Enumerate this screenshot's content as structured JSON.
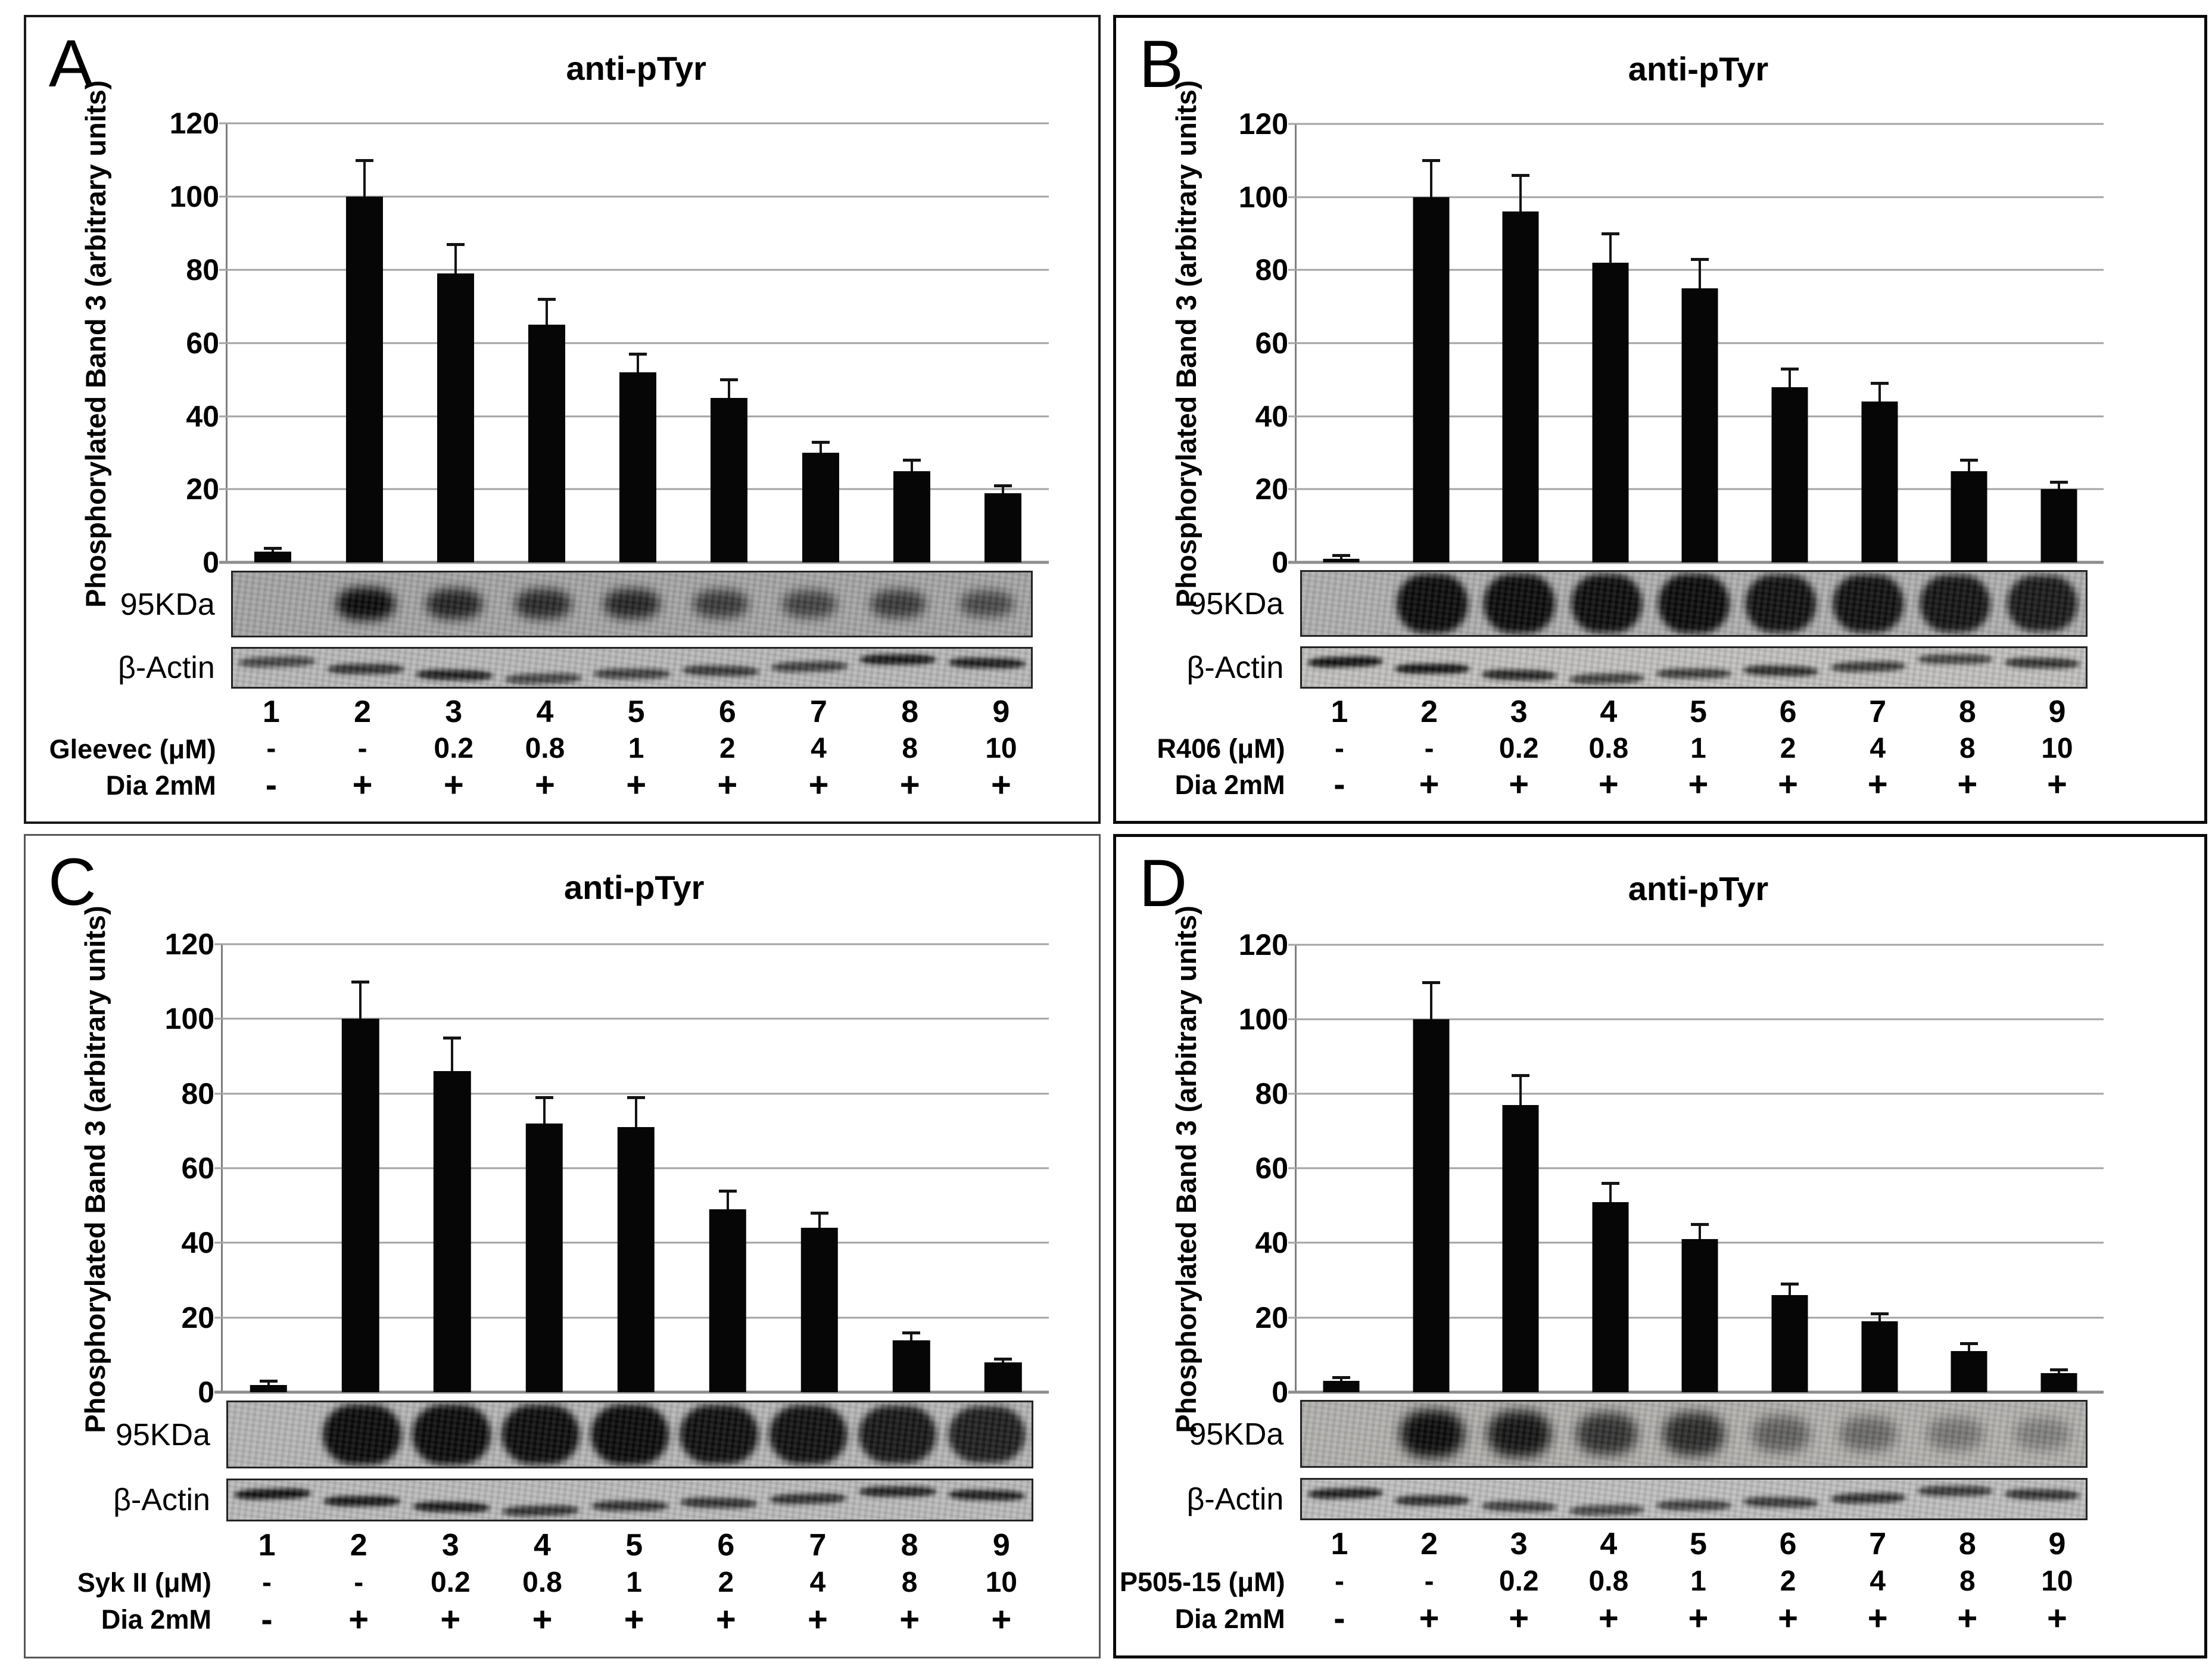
{
  "figure": {
    "description": "Four-panel western blot figure, each panel: anti-pTyr bar chart with error bars over 95KDa and β-Actin blot strips and lane/treatment annotation rows",
    "panel_letters": [
      "A",
      "B",
      "C",
      "D"
    ]
  },
  "chart_data": [
    {
      "panel": "A",
      "type": "bar",
      "title": "anti-pTyr",
      "ylabel": "Phosphorylated Band 3 (arbitrary units)",
      "ylim": [
        0,
        120
      ],
      "yticks": [
        0,
        20,
        40,
        60,
        80,
        100,
        120
      ],
      "grid": true,
      "bar_color": "#060606",
      "categories": [
        "1",
        "2",
        "3",
        "4",
        "5",
        "6",
        "7",
        "8",
        "9"
      ],
      "values": [
        3,
        100,
        79,
        65,
        52,
        45,
        30,
        25,
        19
      ],
      "errors": [
        1,
        10,
        8,
        7,
        5,
        5,
        3,
        3,
        2
      ],
      "treatment": {
        "label": "Gleevec (μM)",
        "values": [
          "-",
          "-",
          "0.2",
          "0.8",
          "1",
          "2",
          "4",
          "8",
          "10"
        ]
      },
      "dia": {
        "label": "Dia 2mM",
        "values": [
          "-",
          "+",
          "+",
          "+",
          "+",
          "+",
          "+",
          "+",
          "+"
        ]
      },
      "blots": [
        {
          "label": "95KDa",
          "band_intensities": [
            0.04,
            1,
            0.8,
            0.75,
            0.78,
            0.62,
            0.55,
            0.62,
            0.5
          ]
        },
        {
          "label": "β-Actin",
          "band_intensities": [
            0.55,
            0.7,
            0.85,
            0.55,
            0.6,
            0.65,
            0.6,
            0.9,
            0.85
          ]
        }
      ]
    },
    {
      "panel": "B",
      "type": "bar",
      "title": "anti-pTyr",
      "ylabel": "Phosphorylated Band 3 (arbitrary units)",
      "ylim": [
        0,
        120
      ],
      "yticks": [
        0,
        20,
        40,
        60,
        80,
        100,
        120
      ],
      "grid": true,
      "bar_color": "#060606",
      "categories": [
        "1",
        "2",
        "3",
        "4",
        "5",
        "6",
        "7",
        "8",
        "9"
      ],
      "values": [
        1,
        100,
        96,
        82,
        75,
        48,
        44,
        25,
        20
      ],
      "errors": [
        1,
        10,
        10,
        8,
        8,
        5,
        5,
        3,
        2
      ],
      "treatment": {
        "label": "R406 (μM)",
        "values": [
          "-",
          "-",
          "0.2",
          "0.8",
          "1",
          "2",
          "4",
          "8",
          "10"
        ]
      },
      "dia": {
        "label": "Dia 2mM",
        "values": [
          "-",
          "+",
          "+",
          "+",
          "+",
          "+",
          "+",
          "+",
          "+"
        ]
      },
      "blots": [
        {
          "label": "95KDa",
          "band_intensities": [
            0.05,
            1,
            1,
            0.98,
            1,
            0.95,
            0.95,
            0.92,
            0.88
          ]
        },
        {
          "label": "β-Actin",
          "band_intensities": [
            0.95,
            0.95,
            0.8,
            0.6,
            0.65,
            0.75,
            0.65,
            0.6,
            0.7
          ]
        }
      ]
    },
    {
      "panel": "C",
      "type": "bar",
      "title": "anti-pTyr",
      "ylabel": "Phosphorylated Band 3 (arbitrary units)",
      "ylim": [
        0,
        120
      ],
      "yticks": [
        0,
        20,
        40,
        60,
        80,
        100,
        120
      ],
      "grid": true,
      "bar_color": "#060606",
      "categories": [
        "1",
        "2",
        "3",
        "4",
        "5",
        "6",
        "7",
        "8",
        "9"
      ],
      "values": [
        2,
        100,
        86,
        72,
        71,
        49,
        44,
        14,
        8
      ],
      "errors": [
        1,
        10,
        9,
        7,
        8,
        5,
        4,
        2,
        1
      ],
      "treatment": {
        "label": "Syk II (μM)",
        "values": [
          "-",
          "-",
          "0.2",
          "0.8",
          "1",
          "2",
          "4",
          "8",
          "10"
        ]
      },
      "dia": {
        "label": "Dia 2mM",
        "values": [
          "-",
          "+",
          "+",
          "+",
          "+",
          "+",
          "+",
          "+",
          "+"
        ]
      },
      "blots": [
        {
          "label": "95KDa",
          "band_intensities": [
            0.03,
            1,
            1,
            0.98,
            1,
            0.96,
            0.95,
            0.9,
            0.85
          ]
        },
        {
          "label": "β-Actin",
          "band_intensities": [
            0.95,
            0.9,
            0.88,
            0.7,
            0.72,
            0.7,
            0.72,
            0.82,
            0.85
          ]
        }
      ]
    },
    {
      "panel": "D",
      "type": "bar",
      "title": "anti-pTyr",
      "ylabel": "Phosphorylated Band 3 (arbitrary units)",
      "ylim": [
        0,
        120
      ],
      "yticks": [
        0,
        20,
        40,
        60,
        80,
        100,
        120
      ],
      "grid": true,
      "bar_color": "#060606",
      "categories": [
        "1",
        "2",
        "3",
        "4",
        "5",
        "6",
        "7",
        "8",
        "9"
      ],
      "values": [
        3,
        100,
        77,
        51,
        41,
        26,
        19,
        11,
        5
      ],
      "errors": [
        1,
        10,
        8,
        5,
        4,
        3,
        2,
        2,
        1
      ],
      "treatment": {
        "label": "P505-15 (μM)",
        "values": [
          "-",
          "-",
          "0.2",
          "0.8",
          "1",
          "2",
          "4",
          "8",
          "10"
        ]
      },
      "dia": {
        "label": "Dia 2mM",
        "values": [
          "-",
          "+",
          "+",
          "+",
          "+",
          "+",
          "+",
          "+",
          "+"
        ]
      },
      "blots": [
        {
          "label": "95KDa",
          "band_intensities": [
            0.04,
            1,
            0.92,
            0.7,
            0.75,
            0.35,
            0.28,
            0.18,
            0.12
          ]
        },
        {
          "label": "β-Actin",
          "band_intensities": [
            0.85,
            0.75,
            0.6,
            0.55,
            0.6,
            0.65,
            0.72,
            0.65,
            0.7
          ]
        }
      ]
    }
  ]
}
